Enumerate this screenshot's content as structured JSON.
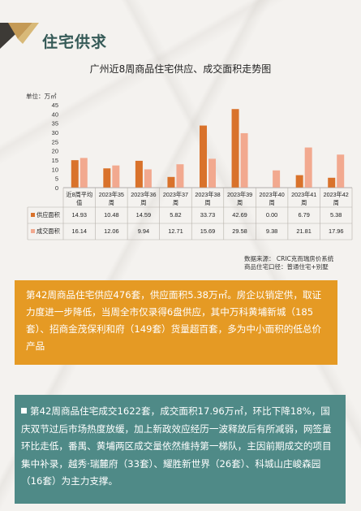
{
  "section_title": "住宅供求",
  "chart_data": {
    "type": "bar",
    "title": "广州近8周商品住宅供应、成交面积走势图",
    "unit_label": "单位：万㎡",
    "ylim": [
      0,
      45
    ],
    "yticks": [
      0,
      5,
      10,
      15,
      20,
      25,
      30,
      35,
      40,
      45
    ],
    "categories": [
      {
        "line1": "近8周平均",
        "line2": "值"
      },
      {
        "line1": "2023年35",
        "line2": "周"
      },
      {
        "line1": "2023年36",
        "line2": "周"
      },
      {
        "line1": "2023年37",
        "line2": "周"
      },
      {
        "line1": "2023年38",
        "line2": "周"
      },
      {
        "line1": "2023年39",
        "line2": "周"
      },
      {
        "line1": "2023年40",
        "line2": "周"
      },
      {
        "line1": "2023年41",
        "line2": "周"
      },
      {
        "line1": "2023年42",
        "line2": "周"
      }
    ],
    "series": [
      {
        "name": "供应面积",
        "color": "#d9722b",
        "values": [
          14.93,
          10.48,
          14.59,
          5.82,
          33.73,
          42.69,
          0.0,
          6.79,
          5.38
        ],
        "labels": [
          "14.93",
          "10.48",
          "14.59",
          "5.82",
          "33.73",
          "42.69",
          "0.00",
          "6.79",
          "5.38"
        ]
      },
      {
        "name": "成交面积",
        "color": "#f2a98f",
        "values": [
          16.14,
          12.06,
          9.94,
          12.71,
          15.69,
          29.58,
          9.38,
          21.81,
          17.96
        ],
        "labels": [
          "16.14",
          "12.06",
          "9.94",
          "12.71",
          "15.69",
          "29.58",
          "9.38",
          "21.81",
          "17.96"
        ]
      }
    ],
    "source_line1": "数据来源：    CRIC克而瑞房价系统",
    "source_line2": "商品住宅口径：普通住宅+别墅"
  },
  "summary_supply": "第42周商品住宅供应476套，供应面积5.38万㎡。房企以销定供，取证力度进一步降低，当周全市仅录得6盘供应，其中万科黄埔新城（185套）、招商金茂保利和府（149套）货量超百套，多为中小面积的低总价产品",
  "summary_deal": "第42周商品住宅成交1622套，成交面积17.96万㎡，环比下降18%，国庆双节过后市场热度放缓，加上新政效应经历一波释放后有所减弱，网签量环比走低，番禺、黄埔两区成交量依然维持第一梯队，主因前期成交的项目集中补录，越秀·瑞麓府（33套）、耀胜新世界（26套）、科城山庄峻森园（16套）为主力支撑。"
}
